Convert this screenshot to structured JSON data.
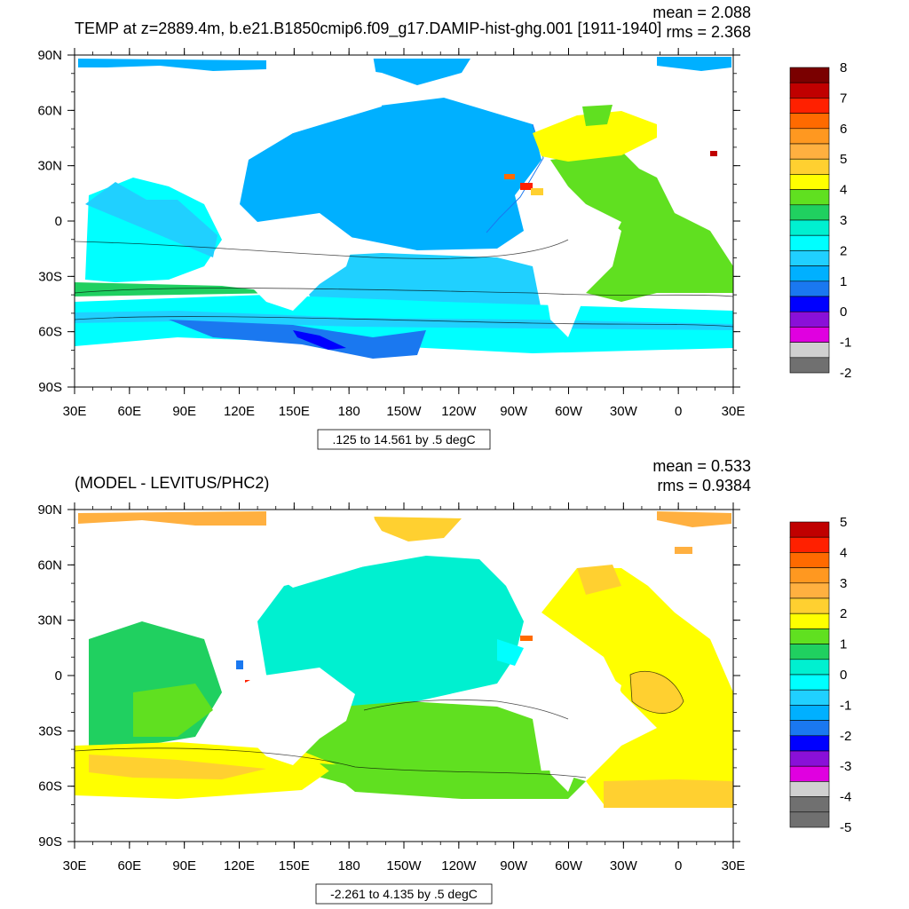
{
  "panels": [
    {
      "title": "TEMP at z=2889.4m, b.e21.B1850cmip6.f09_g17.DAMIP-hist-ghg.001 [1911-1940]",
      "mean_text": "mean = 2.088",
      "rms_text": "rms = 2.368",
      "contour_info": ".125 to 14.561 by .5 degC",
      "colorbar_labels": [
        "8",
        "7",
        "6",
        "5",
        "4",
        "3",
        "2",
        "1",
        "0",
        "-1",
        "-2"
      ],
      "colorbar_colors": [
        "#7a0000",
        "#c00000",
        "#ff2000",
        "#ff6a00",
        "#ff9820",
        "#ffb040",
        "#ffd030",
        "#ffff00",
        "#60e020",
        "#20d060",
        "#00f0d0",
        "#00ffff",
        "#20d0ff",
        "#00b0ff",
        "#1a78f0",
        "#0000ff",
        "#8a10d8",
        "#e000e0",
        "#d0d0d0",
        "#707070"
      ]
    },
    {
      "title": "(MODEL - LEVITUS/PHC2)",
      "mean_text": "mean = 0.533",
      "rms_text": "rms = 0.9384",
      "contour_info": "-2.261 to 4.135 by .5 degC",
      "colorbar_labels": [
        "5",
        "4",
        "3",
        "2",
        "1",
        "0",
        "-1",
        "-2",
        "-3",
        "-4",
        "-5"
      ],
      "colorbar_colors": [
        "#c00000",
        "#ff2000",
        "#ff6a00",
        "#ff9820",
        "#ffb040",
        "#ffd030",
        "#ffff00",
        "#60e020",
        "#20d060",
        "#00f0d0",
        "#00ffff",
        "#20d0ff",
        "#00b0ff",
        "#1a78f0",
        "#0000ff",
        "#8a10d8",
        "#e000e0",
        "#d0d0d0",
        "#707070",
        "#707070"
      ]
    }
  ],
  "lon_labels": [
    "30E",
    "60E",
    "90E",
    "120E",
    "150E",
    "180",
    "150W",
    "120W",
    "90W",
    "60W",
    "30W",
    "0",
    "30E"
  ],
  "lat_labels": [
    "90N",
    "60N",
    "30N",
    "0",
    "30S",
    "60S",
    "90S"
  ]
}
